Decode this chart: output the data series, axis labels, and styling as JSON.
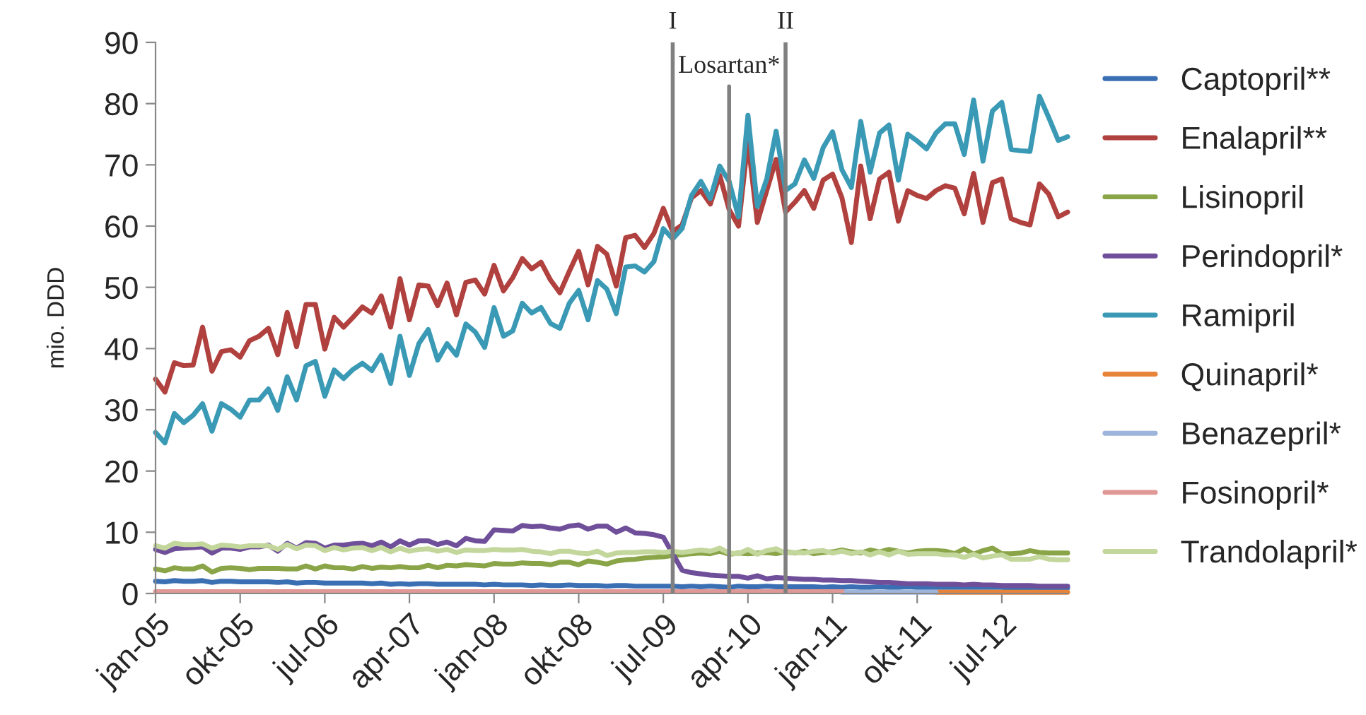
{
  "chart_data": {
    "type": "line",
    "ylabel": "mio. DDD",
    "x": [
      "2005-01",
      "2005-02",
      "2005-03",
      "2005-04",
      "2005-05",
      "2005-06",
      "2005-07",
      "2005-08",
      "2005-09",
      "2005-10",
      "2005-11",
      "2005-12",
      "2006-01",
      "2006-02",
      "2006-03",
      "2006-04",
      "2006-05",
      "2006-06",
      "2006-07",
      "2006-08",
      "2006-09",
      "2006-10",
      "2006-11",
      "2006-12",
      "2007-01",
      "2007-02",
      "2007-03",
      "2007-04",
      "2007-05",
      "2007-06",
      "2007-07",
      "2007-08",
      "2007-09",
      "2007-10",
      "2007-11",
      "2007-12",
      "2008-01",
      "2008-02",
      "2008-03",
      "2008-04",
      "2008-05",
      "2008-06",
      "2008-07",
      "2008-08",
      "2008-09",
      "2008-10",
      "2008-11",
      "2008-12",
      "2009-01",
      "2009-02",
      "2009-03",
      "2009-04",
      "2009-05",
      "2009-06",
      "2009-07",
      "2009-08",
      "2009-09",
      "2009-10",
      "2009-11",
      "2009-12",
      "2010-01",
      "2010-02",
      "2010-03",
      "2010-04",
      "2010-05",
      "2010-06",
      "2010-07",
      "2010-08",
      "2010-09",
      "2010-10",
      "2010-11",
      "2010-12",
      "2011-01",
      "2011-02",
      "2011-03",
      "2011-04",
      "2011-05",
      "2011-06",
      "2011-07",
      "2011-08",
      "2011-09",
      "2011-10",
      "2011-11",
      "2011-12",
      "2012-01",
      "2012-02",
      "2012-03",
      "2012-04",
      "2012-05",
      "2012-06",
      "2012-07",
      "2012-08",
      "2012-09",
      "2012-10",
      "2012-11",
      "2012-12",
      "2013-01",
      "2013-02"
    ],
    "ylim": [
      0,
      90
    ],
    "yticks": [
      0,
      10,
      20,
      30,
      40,
      50,
      60,
      70,
      80,
      90
    ],
    "xlim": [
      "2005-01",
      "2013-02"
    ],
    "xticks": [
      {
        "value": "2005-01",
        "label": "jan-05"
      },
      {
        "value": "2005-10",
        "label": "okt-05"
      },
      {
        "value": "2006-07",
        "label": "jul-06"
      },
      {
        "value": "2007-04",
        "label": "apr-07"
      },
      {
        "value": "2008-01",
        "label": "jan-08"
      },
      {
        "value": "2008-10",
        "label": "okt-08"
      },
      {
        "value": "2009-07",
        "label": "jul-09"
      },
      {
        "value": "2010-04",
        "label": "apr-10"
      },
      {
        "value": "2011-01",
        "label": "jan-11"
      },
      {
        "value": "2011-10",
        "label": "okt-11"
      },
      {
        "value": "2012-07",
        "label": "jul-12"
      }
    ],
    "legend": "right",
    "marker": "none",
    "line_style": "solid",
    "ref_lines": [
      {
        "axis": "x",
        "value": "2009-08",
        "label": "I",
        "color": "#808080"
      },
      {
        "axis": "x",
        "value": "2010-02",
        "label": "Losartan*",
        "color": "#808080"
      },
      {
        "axis": "x",
        "value": "2010-08",
        "label": "II",
        "color": "#808080"
      }
    ],
    "series": [
      {
        "name": "Captopril**",
        "color": "#3b6fb3",
        "values": [
          2.0,
          1.9,
          2.1,
          2.0,
          2.0,
          2.1,
          1.8,
          2.0,
          2.0,
          1.9,
          1.9,
          1.9,
          1.9,
          1.8,
          1.9,
          1.7,
          1.8,
          1.8,
          1.7,
          1.7,
          1.7,
          1.7,
          1.7,
          1.6,
          1.7,
          1.5,
          1.6,
          1.5,
          1.6,
          1.6,
          1.5,
          1.5,
          1.5,
          1.5,
          1.5,
          1.4,
          1.5,
          1.4,
          1.4,
          1.4,
          1.3,
          1.4,
          1.3,
          1.3,
          1.4,
          1.3,
          1.3,
          1.3,
          1.2,
          1.3,
          1.3,
          1.2,
          1.2,
          1.2,
          1.2,
          1.2,
          1.1,
          1.2,
          1.1,
          1.2,
          1.1,
          1.0,
          1.2,
          1.1,
          1.1,
          1.2,
          1.1,
          1.1,
          1.1,
          1.1,
          1.1,
          1.0,
          1.1,
          1.0,
          1.1,
          1.0,
          1.0,
          1.1,
          1.0,
          1.0,
          1.1,
          1.0,
          1.0,
          1.0,
          1.0,
          1.0,
          1.0,
          1.0,
          1.0,
          1.0,
          1.0,
          0.9,
          1.0,
          0.9,
          0.9,
          0.9,
          0.9,
          0.9
        ]
      },
      {
        "name": "Enalapril**",
        "color": "#b0413e",
        "values": [
          35.0,
          32.9,
          37.7,
          37.2,
          37.3,
          43.5,
          36.3,
          39.5,
          39.8,
          38.6,
          41.3,
          42.0,
          43.3,
          39.0,
          45.9,
          40.3,
          47.2,
          47.2,
          39.9,
          45.1,
          43.5,
          45.1,
          46.8,
          45.8,
          48.6,
          43.5,
          51.4,
          44.7,
          50.4,
          50.2,
          47.0,
          50.7,
          45.5,
          50.8,
          51.2,
          48.9,
          53.6,
          49.4,
          51.6,
          54.7,
          53.0,
          54.1,
          51.2,
          49.1,
          52.6,
          55.9,
          50.4,
          56.7,
          55.4,
          50.2,
          58.1,
          58.5,
          56.5,
          58.8,
          62.9,
          59.1,
          60.2,
          64.6,
          65.8,
          63.6,
          68.3,
          62.7,
          60.0,
          73.9,
          60.6,
          65.8,
          70.9,
          62.3,
          63.9,
          65.8,
          62.9,
          67.5,
          68.5,
          64.6,
          57.3,
          69.8,
          61.2,
          67.7,
          68.8,
          60.8,
          65.8,
          65.0,
          64.5,
          65.8,
          66.6,
          66.2,
          62.0,
          68.6,
          60.6,
          67.1,
          67.7,
          61.2,
          60.6,
          60.2,
          66.9,
          65.2,
          61.5,
          62.3
        ]
      },
      {
        "name": "Lisinopril",
        "color": "#8aa548",
        "values": [
          4.0,
          3.7,
          4.2,
          4.0,
          4.0,
          4.5,
          3.5,
          4.1,
          4.2,
          4.1,
          3.9,
          4.1,
          4.1,
          4.1,
          4.0,
          4.0,
          4.5,
          4.0,
          4.5,
          4.2,
          4.2,
          4.0,
          4.4,
          4.1,
          4.3,
          4.2,
          4.4,
          4.2,
          4.2,
          4.6,
          4.2,
          4.6,
          4.5,
          4.7,
          4.6,
          4.5,
          4.9,
          4.8,
          4.8,
          5.0,
          4.9,
          4.9,
          4.7,
          5.1,
          5.1,
          4.7,
          5.3,
          5.1,
          4.8,
          5.3,
          5.5,
          5.6,
          5.8,
          5.9,
          6.0,
          6.2,
          6.3,
          6.5,
          6.6,
          6.5,
          6.9,
          6.4,
          6.6,
          6.5,
          6.6,
          6.7,
          6.5,
          6.8,
          6.6,
          6.9,
          6.5,
          6.7,
          6.8,
          7.1,
          6.8,
          6.6,
          7.1,
          6.8,
          7.2,
          6.9,
          6.6,
          6.9,
          7.0,
          7.0,
          6.9,
          6.5,
          7.3,
          6.4,
          7.0,
          7.4,
          6.5,
          6.5,
          6.6,
          7.0,
          6.7,
          6.6,
          6.6,
          6.6
        ]
      },
      {
        "name": "Perindopril*",
        "color": "#6f4f9a",
        "values": [
          7.2,
          6.7,
          7.3,
          7.4,
          7.5,
          7.6,
          6.6,
          7.4,
          7.4,
          7.2,
          7.6,
          7.6,
          7.9,
          6.9,
          8.2,
          7.4,
          8.3,
          8.2,
          7.4,
          7.9,
          7.9,
          8.1,
          8.2,
          7.8,
          8.4,
          7.6,
          8.6,
          7.9,
          8.6,
          8.6,
          8.0,
          8.4,
          7.8,
          9.0,
          8.6,
          8.5,
          10.4,
          10.3,
          10.2,
          11.1,
          10.9,
          11.0,
          10.7,
          10.5,
          11.0,
          11.2,
          10.5,
          11.0,
          11.0,
          10.0,
          10.7,
          9.9,
          9.8,
          9.6,
          9.2,
          6.5,
          3.8,
          3.4,
          3.2,
          3.0,
          2.9,
          2.8,
          2.8,
          2.5,
          2.9,
          2.4,
          2.6,
          2.5,
          2.4,
          2.3,
          2.3,
          2.2,
          2.2,
          2.1,
          2.1,
          2.0,
          1.9,
          1.8,
          1.8,
          1.7,
          1.6,
          1.6,
          1.6,
          1.5,
          1.5,
          1.5,
          1.4,
          1.5,
          1.4,
          1.4,
          1.3,
          1.3,
          1.3,
          1.3,
          1.2,
          1.2,
          1.2,
          1.2
        ]
      },
      {
        "name": "Ramipril",
        "color": "#3a9ab5",
        "values": [
          26.3,
          24.6,
          29.4,
          27.9,
          29.1,
          31.0,
          26.5,
          31.0,
          30.1,
          28.8,
          31.6,
          31.6,
          33.4,
          29.9,
          35.4,
          31.6,
          37.2,
          37.9,
          32.2,
          36.5,
          35.1,
          36.6,
          37.6,
          36.4,
          38.9,
          34.3,
          42.0,
          35.6,
          40.8,
          43.1,
          38.1,
          40.8,
          38.9,
          44.0,
          42.7,
          40.2,
          46.7,
          42.0,
          42.9,
          47.4,
          45.8,
          46.7,
          44.1,
          43.3,
          47.4,
          49.5,
          44.7,
          51.1,
          49.7,
          45.7,
          53.3,
          53.5,
          52.5,
          54.2,
          59.6,
          57.9,
          59.6,
          65.0,
          67.3,
          64.5,
          69.8,
          67.3,
          61.5,
          78.1,
          63.2,
          67.7,
          75.5,
          65.8,
          66.9,
          70.8,
          67.8,
          72.8,
          75.4,
          69.2,
          66.3,
          77.1,
          68.8,
          75.2,
          76.5,
          67.5,
          75.0,
          73.9,
          72.6,
          75.2,
          76.7,
          76.7,
          71.7,
          80.6,
          70.6,
          78.8,
          80.2,
          72.5,
          72.3,
          72.2,
          81.2,
          77.7,
          74.0,
          74.6
        ]
      },
      {
        "name": "Quinapril*",
        "color": "#e8833a",
        "values": [
          null,
          null,
          null,
          null,
          null,
          null,
          null,
          null,
          null,
          null,
          null,
          null,
          null,
          null,
          null,
          null,
          null,
          null,
          null,
          null,
          null,
          null,
          null,
          null,
          null,
          null,
          null,
          null,
          null,
          null,
          null,
          null,
          null,
          null,
          null,
          null,
          null,
          null,
          null,
          null,
          null,
          null,
          null,
          null,
          null,
          null,
          null,
          null,
          null,
          null,
          null,
          null,
          null,
          null,
          null,
          null,
          null,
          null,
          null,
          null,
          null,
          null,
          null,
          null,
          null,
          null,
          null,
          null,
          null,
          null,
          null,
          null,
          null,
          null,
          null,
          null,
          null,
          null,
          null,
          null,
          null,
          null,
          null,
          0.2,
          0.2,
          0.2,
          0.2,
          0.2,
          0.2,
          0.2,
          0.2,
          0.2,
          0.2,
          0.2,
          0.2,
          0.2,
          0.2,
          0.2
        ]
      },
      {
        "name": "Benazepril*",
        "color": "#9db4db",
        "values": [
          null,
          null,
          null,
          null,
          null,
          null,
          null,
          null,
          null,
          null,
          null,
          null,
          null,
          null,
          null,
          null,
          null,
          null,
          null,
          null,
          null,
          null,
          null,
          null,
          null,
          null,
          null,
          null,
          null,
          null,
          null,
          null,
          null,
          null,
          null,
          null,
          null,
          null,
          null,
          null,
          null,
          null,
          null,
          null,
          null,
          null,
          null,
          null,
          null,
          null,
          null,
          null,
          null,
          null,
          null,
          null,
          null,
          null,
          null,
          null,
          null,
          null,
          null,
          null,
          null,
          null,
          null,
          null,
          null,
          null,
          null,
          null,
          null,
          0.2,
          0.2,
          0.2,
          0.2,
          0.2,
          0.2,
          0.2,
          0.2,
          0.2,
          0.2,
          0.2,
          null,
          null,
          null,
          null,
          null,
          null,
          null,
          null,
          null,
          null,
          null,
          null,
          null,
          null
        ]
      },
      {
        "name": "Fosinopril*",
        "color": "#e09896",
        "values": [
          0.3,
          0.3,
          0.3,
          0.3,
          0.3,
          0.3,
          0.3,
          0.3,
          0.3,
          0.3,
          0.3,
          0.3,
          0.3,
          0.3,
          0.3,
          0.3,
          0.3,
          0.3,
          0.3,
          0.3,
          0.3,
          0.3,
          0.3,
          0.3,
          0.3,
          0.3,
          0.3,
          0.3,
          0.3,
          0.3,
          0.3,
          0.3,
          0.3,
          0.3,
          0.3,
          0.3,
          0.3,
          0.3,
          0.3,
          0.3,
          0.3,
          0.3,
          0.3,
          0.3,
          0.3,
          0.3,
          0.3,
          0.3,
          0.3,
          0.3,
          0.3,
          0.3,
          0.3,
          0.3,
          0.3,
          0.3,
          0.3,
          0.3,
          0.3,
          0.3,
          0.3,
          0.3,
          0.3,
          0.3,
          0.3,
          0.3,
          0.3,
          0.3,
          0.3,
          0.3,
          0.3,
          0.3,
          0.3,
          0.3,
          null,
          null,
          null,
          null,
          null,
          null,
          null,
          null,
          null,
          null,
          null,
          null,
          null,
          null,
          null,
          null,
          null,
          null,
          null,
          null,
          null,
          null,
          null,
          null
        ]
      },
      {
        "name": "Trandolapril*",
        "color": "#c3d69b",
        "values": [
          7.8,
          7.4,
          8.2,
          8.0,
          8.0,
          8.1,
          7.4,
          7.9,
          7.8,
          7.6,
          7.8,
          7.8,
          7.8,
          7.2,
          8.0,
          7.3,
          7.9,
          7.8,
          7.0,
          7.5,
          7.1,
          7.4,
          7.5,
          7.0,
          7.5,
          6.8,
          7.4,
          6.9,
          7.2,
          7.3,
          6.9,
          7.2,
          6.7,
          7.1,
          7.0,
          7.0,
          7.2,
          7.1,
          7.1,
          7.2,
          6.9,
          6.8,
          6.5,
          6.9,
          6.9,
          6.6,
          6.5,
          6.9,
          6.2,
          6.6,
          6.7,
          6.7,
          6.8,
          6.8,
          6.7,
          6.9,
          6.7,
          6.9,
          7.1,
          6.9,
          7.4,
          6.6,
          6.5,
          7.2,
          6.4,
          7.0,
          7.3,
          6.6,
          6.7,
          6.6,
          6.9,
          7.0,
          6.6,
          6.9,
          6.5,
          6.8,
          6.3,
          6.8,
          6.3,
          6.9,
          6.4,
          6.5,
          6.5,
          6.5,
          6.3,
          6.3,
          5.9,
          6.4,
          5.8,
          6.1,
          6.3,
          5.6,
          5.6,
          5.6,
          6.0,
          5.6,
          5.5,
          5.5
        ]
      }
    ]
  }
}
